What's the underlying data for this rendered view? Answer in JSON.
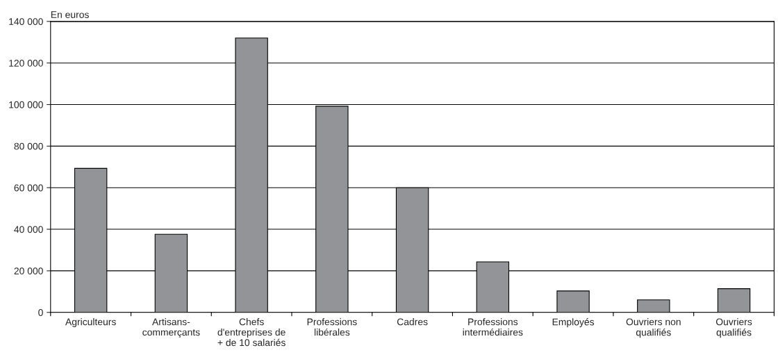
{
  "chart_data": {
    "type": "bar",
    "ylabel": "En euros",
    "categories": [
      "Agriculteurs",
      "Artisans-\ncommerçants",
      "Chefs\nd'entreprises de\n+ de 10 salariés",
      "Professions\nlibérales",
      "Cadres",
      "Professions\nintermédiaires",
      "Employés",
      "Ouvriers non\nqualifiés",
      "Ouvriers\nqualifiés"
    ],
    "values": [
      69300,
      37600,
      132000,
      99200,
      60000,
      24300,
      10300,
      6000,
      11400
    ],
    "color": "#939498",
    "ylim": [
      0,
      140000
    ],
    "yticks": [
      {
        "value": 0,
        "label": "0"
      },
      {
        "value": 20000,
        "label": "20 000"
      },
      {
        "value": 40000,
        "label": "40 000"
      },
      {
        "value": 60000,
        "label": "60 000"
      },
      {
        "value": 80000,
        "label": "80 000"
      },
      {
        "value": 100000,
        "label": "100 000"
      },
      {
        "value": 120000,
        "label": "120 000"
      },
      {
        "value": 140000,
        "label": "140 000"
      }
    ],
    "grid": "y",
    "legend": false
  }
}
